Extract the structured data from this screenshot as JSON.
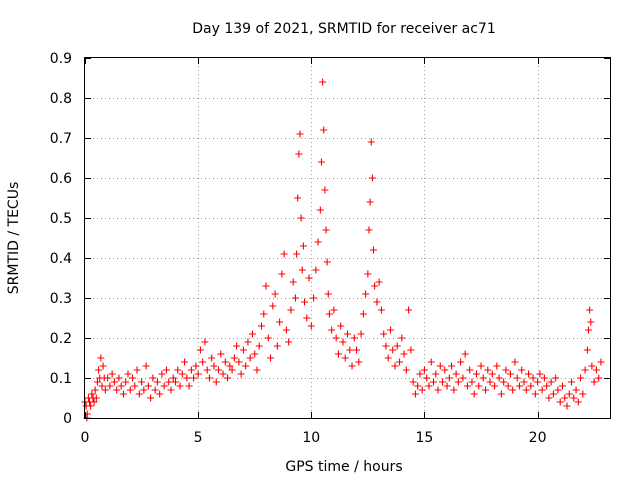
{
  "chart_data": {
    "type": "scatter",
    "title": "Day 139 of 2021, SRMTID for receiver ac71",
    "xlabel": "GPS time / hours",
    "ylabel": "SRMTID / TECUs",
    "xlim": [
      0,
      23.2
    ],
    "ylim": [
      0,
      0.9
    ],
    "xticks": [
      0,
      5,
      10,
      15,
      20
    ],
    "xtick_labels": [
      "0",
      "5",
      "10",
      "15",
      "20"
    ],
    "yticks": [
      0,
      0.1,
      0.2,
      0.3,
      0.4,
      0.5,
      0.6,
      0.7,
      0.8,
      0.9
    ],
    "ytick_labels": [
      "0",
      "0.1",
      "0.2",
      "0.3",
      "0.4",
      "0.5",
      "0.6",
      "0.7",
      "0.8",
      "0.9"
    ],
    "grid": true,
    "marker": "+",
    "series": [
      {
        "name": "SRMTID",
        "color": "#ff0000",
        "points": [
          [
            0.0,
            0.04
          ],
          [
            0.05,
            0.03
          ],
          [
            0.08,
            0.0
          ],
          [
            0.1,
            0.01
          ],
          [
            0.15,
            0.05
          ],
          [
            0.2,
            0.04
          ],
          [
            0.25,
            0.03
          ],
          [
            0.3,
            0.06
          ],
          [
            0.35,
            0.05
          ],
          [
            0.4,
            0.04
          ],
          [
            0.45,
            0.07
          ],
          [
            0.5,
            0.05
          ],
          [
            0.55,
            0.09
          ],
          [
            0.6,
            0.12
          ],
          [
            0.65,
            0.1
          ],
          [
            0.7,
            0.15
          ],
          [
            0.75,
            0.08
          ],
          [
            0.8,
            0.13
          ],
          [
            0.85,
            0.1
          ],
          [
            0.9,
            0.07
          ],
          [
            1.0,
            0.1
          ],
          [
            1.1,
            0.08
          ],
          [
            1.2,
            0.11
          ],
          [
            1.3,
            0.09
          ],
          [
            1.4,
            0.07
          ],
          [
            1.5,
            0.1
          ],
          [
            1.6,
            0.08
          ],
          [
            1.7,
            0.06
          ],
          [
            1.8,
            0.09
          ],
          [
            1.9,
            0.11
          ],
          [
            2.0,
            0.07
          ],
          [
            2.1,
            0.1
          ],
          [
            2.2,
            0.08
          ],
          [
            2.3,
            0.12
          ],
          [
            2.4,
            0.06
          ],
          [
            2.5,
            0.09
          ],
          [
            2.6,
            0.07
          ],
          [
            2.7,
            0.13
          ],
          [
            2.8,
            0.08
          ],
          [
            2.9,
            0.05
          ],
          [
            3.0,
            0.1
          ],
          [
            3.1,
            0.07
          ],
          [
            3.2,
            0.09
          ],
          [
            3.3,
            0.06
          ],
          [
            3.4,
            0.11
          ],
          [
            3.5,
            0.08
          ],
          [
            3.6,
            0.12
          ],
          [
            3.7,
            0.09
          ],
          [
            3.8,
            0.07
          ],
          [
            3.9,
            0.1
          ],
          [
            4.0,
            0.09
          ],
          [
            4.1,
            0.12
          ],
          [
            4.2,
            0.08
          ],
          [
            4.3,
            0.11
          ],
          [
            4.4,
            0.14
          ],
          [
            4.5,
            0.1
          ],
          [
            4.6,
            0.08
          ],
          [
            4.7,
            0.12
          ],
          [
            4.8,
            0.1
          ],
          [
            4.9,
            0.13
          ],
          [
            5.0,
            0.11
          ],
          [
            5.1,
            0.17
          ],
          [
            5.2,
            0.14
          ],
          [
            5.3,
            0.19
          ],
          [
            5.4,
            0.12
          ],
          [
            5.5,
            0.1
          ],
          [
            5.6,
            0.15
          ],
          [
            5.7,
            0.13
          ],
          [
            5.8,
            0.09
          ],
          [
            5.9,
            0.12
          ],
          [
            6.0,
            0.16
          ],
          [
            6.1,
            0.11
          ],
          [
            6.2,
            0.14
          ],
          [
            6.3,
            0.1
          ],
          [
            6.4,
            0.13
          ],
          [
            6.5,
            0.12
          ],
          [
            6.6,
            0.15
          ],
          [
            6.7,
            0.18
          ],
          [
            6.8,
            0.14
          ],
          [
            6.9,
            0.11
          ],
          [
            7.0,
            0.17
          ],
          [
            7.1,
            0.13
          ],
          [
            7.2,
            0.19
          ],
          [
            7.3,
            0.15
          ],
          [
            7.4,
            0.21
          ],
          [
            7.5,
            0.16
          ],
          [
            7.6,
            0.12
          ],
          [
            7.7,
            0.18
          ],
          [
            7.8,
            0.23
          ],
          [
            7.9,
            0.26
          ],
          [
            8.0,
            0.33
          ],
          [
            8.1,
            0.2
          ],
          [
            8.2,
            0.15
          ],
          [
            8.3,
            0.28
          ],
          [
            8.4,
            0.31
          ],
          [
            8.5,
            0.18
          ],
          [
            8.6,
            0.24
          ],
          [
            8.7,
            0.36
          ],
          [
            8.8,
            0.41
          ],
          [
            8.9,
            0.22
          ],
          [
            9.0,
            0.19
          ],
          [
            9.1,
            0.27
          ],
          [
            9.2,
            0.34
          ],
          [
            9.3,
            0.3
          ],
          [
            9.35,
            0.41
          ],
          [
            9.4,
            0.55
          ],
          [
            9.45,
            0.66
          ],
          [
            9.5,
            0.71
          ],
          [
            9.55,
            0.5
          ],
          [
            9.6,
            0.37
          ],
          [
            9.65,
            0.43
          ],
          [
            9.7,
            0.29
          ],
          [
            9.8,
            0.25
          ],
          [
            9.9,
            0.35
          ],
          [
            10.0,
            0.23
          ],
          [
            10.1,
            0.3
          ],
          [
            10.2,
            0.37
          ],
          [
            10.3,
            0.44
          ],
          [
            10.4,
            0.52
          ],
          [
            10.45,
            0.64
          ],
          [
            10.5,
            0.84
          ],
          [
            10.55,
            0.72
          ],
          [
            10.6,
            0.57
          ],
          [
            10.65,
            0.47
          ],
          [
            10.7,
            0.39
          ],
          [
            10.75,
            0.31
          ],
          [
            10.8,
            0.26
          ],
          [
            10.9,
            0.22
          ],
          [
            11.0,
            0.27
          ],
          [
            11.1,
            0.2
          ],
          [
            11.2,
            0.16
          ],
          [
            11.3,
            0.23
          ],
          [
            11.4,
            0.19
          ],
          [
            11.5,
            0.15
          ],
          [
            11.6,
            0.21
          ],
          [
            11.7,
            0.17
          ],
          [
            11.8,
            0.13
          ],
          [
            11.9,
            0.2
          ],
          [
            12.0,
            0.17
          ],
          [
            12.1,
            0.14
          ],
          [
            12.2,
            0.21
          ],
          [
            12.3,
            0.26
          ],
          [
            12.4,
            0.31
          ],
          [
            12.5,
            0.36
          ],
          [
            12.55,
            0.47
          ],
          [
            12.6,
            0.54
          ],
          [
            12.65,
            0.69
          ],
          [
            12.7,
            0.6
          ],
          [
            12.75,
            0.42
          ],
          [
            12.8,
            0.33
          ],
          [
            12.9,
            0.29
          ],
          [
            13.0,
            0.34
          ],
          [
            13.1,
            0.27
          ],
          [
            13.2,
            0.21
          ],
          [
            13.3,
            0.18
          ],
          [
            13.4,
            0.15
          ],
          [
            13.5,
            0.22
          ],
          [
            13.6,
            0.17
          ],
          [
            13.7,
            0.13
          ],
          [
            13.8,
            0.18
          ],
          [
            13.9,
            0.14
          ],
          [
            14.0,
            0.2
          ],
          [
            14.1,
            0.16
          ],
          [
            14.2,
            0.12
          ],
          [
            14.3,
            0.27
          ],
          [
            14.4,
            0.17
          ],
          [
            14.5,
            0.09
          ],
          [
            14.6,
            0.06
          ],
          [
            14.7,
            0.08
          ],
          [
            14.8,
            0.11
          ],
          [
            14.9,
            0.07
          ],
          [
            15.0,
            0.12
          ],
          [
            15.1,
            0.1
          ],
          [
            15.2,
            0.08
          ],
          [
            15.3,
            0.14
          ],
          [
            15.4,
            0.09
          ],
          [
            15.5,
            0.11
          ],
          [
            15.6,
            0.07
          ],
          [
            15.7,
            0.13
          ],
          [
            15.8,
            0.09
          ],
          [
            15.9,
            0.12
          ],
          [
            16.0,
            0.08
          ],
          [
            16.1,
            0.1
          ],
          [
            16.2,
            0.13
          ],
          [
            16.3,
            0.07
          ],
          [
            16.4,
            0.11
          ],
          [
            16.5,
            0.09
          ],
          [
            16.6,
            0.14
          ],
          [
            16.7,
            0.1
          ],
          [
            16.8,
            0.16
          ],
          [
            16.9,
            0.08
          ],
          [
            17.0,
            0.12
          ],
          [
            17.1,
            0.09
          ],
          [
            17.2,
            0.06
          ],
          [
            17.3,
            0.11
          ],
          [
            17.4,
            0.08
          ],
          [
            17.5,
            0.13
          ],
          [
            17.6,
            0.1
          ],
          [
            17.7,
            0.07
          ],
          [
            17.8,
            0.12
          ],
          [
            17.9,
            0.09
          ],
          [
            18.0,
            0.11
          ],
          [
            18.1,
            0.08
          ],
          [
            18.2,
            0.13
          ],
          [
            18.3,
            0.1
          ],
          [
            18.4,
            0.06
          ],
          [
            18.5,
            0.09
          ],
          [
            18.6,
            0.12
          ],
          [
            18.7,
            0.08
          ],
          [
            18.8,
            0.11
          ],
          [
            18.9,
            0.07
          ],
          [
            19.0,
            0.14
          ],
          [
            19.1,
            0.1
          ],
          [
            19.2,
            0.08
          ],
          [
            19.3,
            0.12
          ],
          [
            19.4,
            0.09
          ],
          [
            19.5,
            0.07
          ],
          [
            19.6,
            0.11
          ],
          [
            19.7,
            0.08
          ],
          [
            19.8,
            0.1
          ],
          [
            19.9,
            0.06
          ],
          [
            20.0,
            0.09
          ],
          [
            20.1,
            0.11
          ],
          [
            20.2,
            0.07
          ],
          [
            20.3,
            0.1
          ],
          [
            20.4,
            0.08
          ],
          [
            20.5,
            0.05
          ],
          [
            20.6,
            0.09
          ],
          [
            20.7,
            0.06
          ],
          [
            20.8,
            0.1
          ],
          [
            20.9,
            0.07
          ],
          [
            21.0,
            0.04
          ],
          [
            21.1,
            0.08
          ],
          [
            21.2,
            0.05
          ],
          [
            21.3,
            0.03
          ],
          [
            21.4,
            0.06
          ],
          [
            21.5,
            0.09
          ],
          [
            21.6,
            0.05
          ],
          [
            21.7,
            0.07
          ],
          [
            21.8,
            0.04
          ],
          [
            21.9,
            0.1
          ],
          [
            22.0,
            0.06
          ],
          [
            22.1,
            0.12
          ],
          [
            22.2,
            0.17
          ],
          [
            22.25,
            0.22
          ],
          [
            22.3,
            0.27
          ],
          [
            22.35,
            0.24
          ],
          [
            22.4,
            0.13
          ],
          [
            22.5,
            0.09
          ],
          [
            22.6,
            0.12
          ],
          [
            22.7,
            0.1
          ],
          [
            22.8,
            0.14
          ]
        ]
      }
    ]
  }
}
